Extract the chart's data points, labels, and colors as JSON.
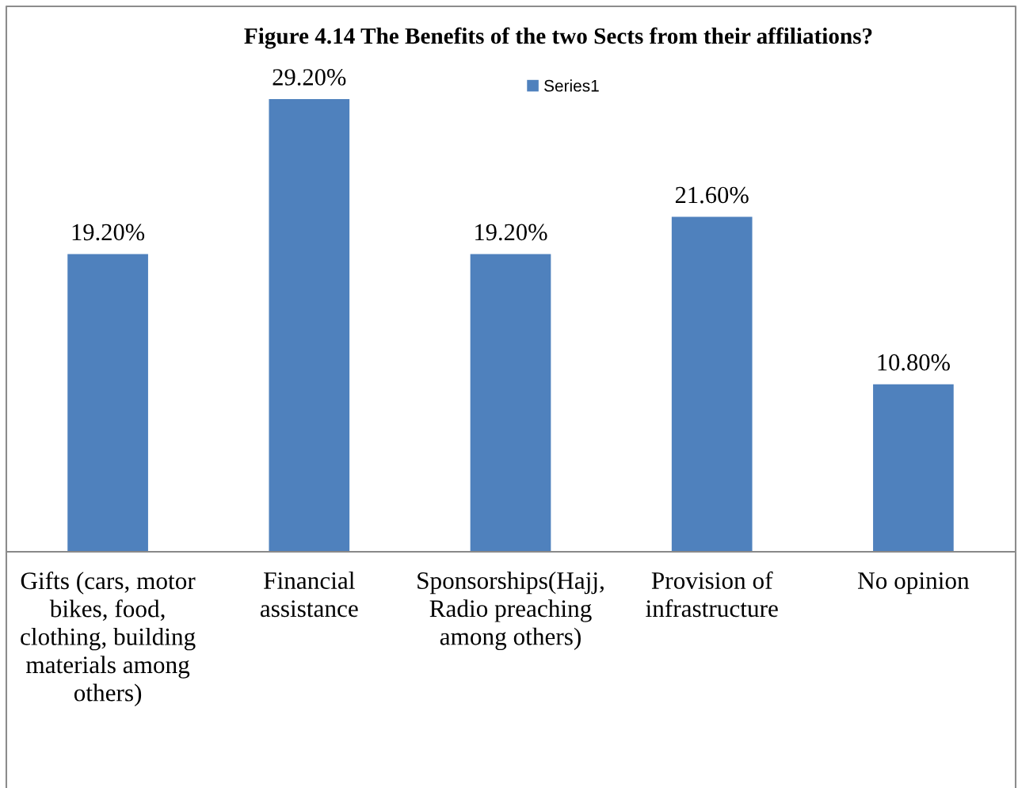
{
  "chart_data": {
    "type": "bar",
    "title": "Figure 4.14 The Benefits of the two Sects from their affiliations?",
    "categories": [
      "Gifts (cars, motor\nbikes, food,\nclothing, building\nmaterials among\nothers)",
      "Financial\nassistance",
      "Sponsorships(Hajj,\nRadio preaching\namong others)",
      "Provision of\ninfrastructure",
      "No opinion"
    ],
    "series": [
      {
        "name": "Series1",
        "color": "#4f81bd",
        "values": [
          19.2,
          29.2,
          19.2,
          21.6,
          10.8
        ],
        "value_labels": [
          "19.20%",
          "29.20%",
          "19.20%",
          "21.60%",
          "10.80%"
        ]
      }
    ],
    "legend": "top",
    "tick_labels": "x"
  }
}
